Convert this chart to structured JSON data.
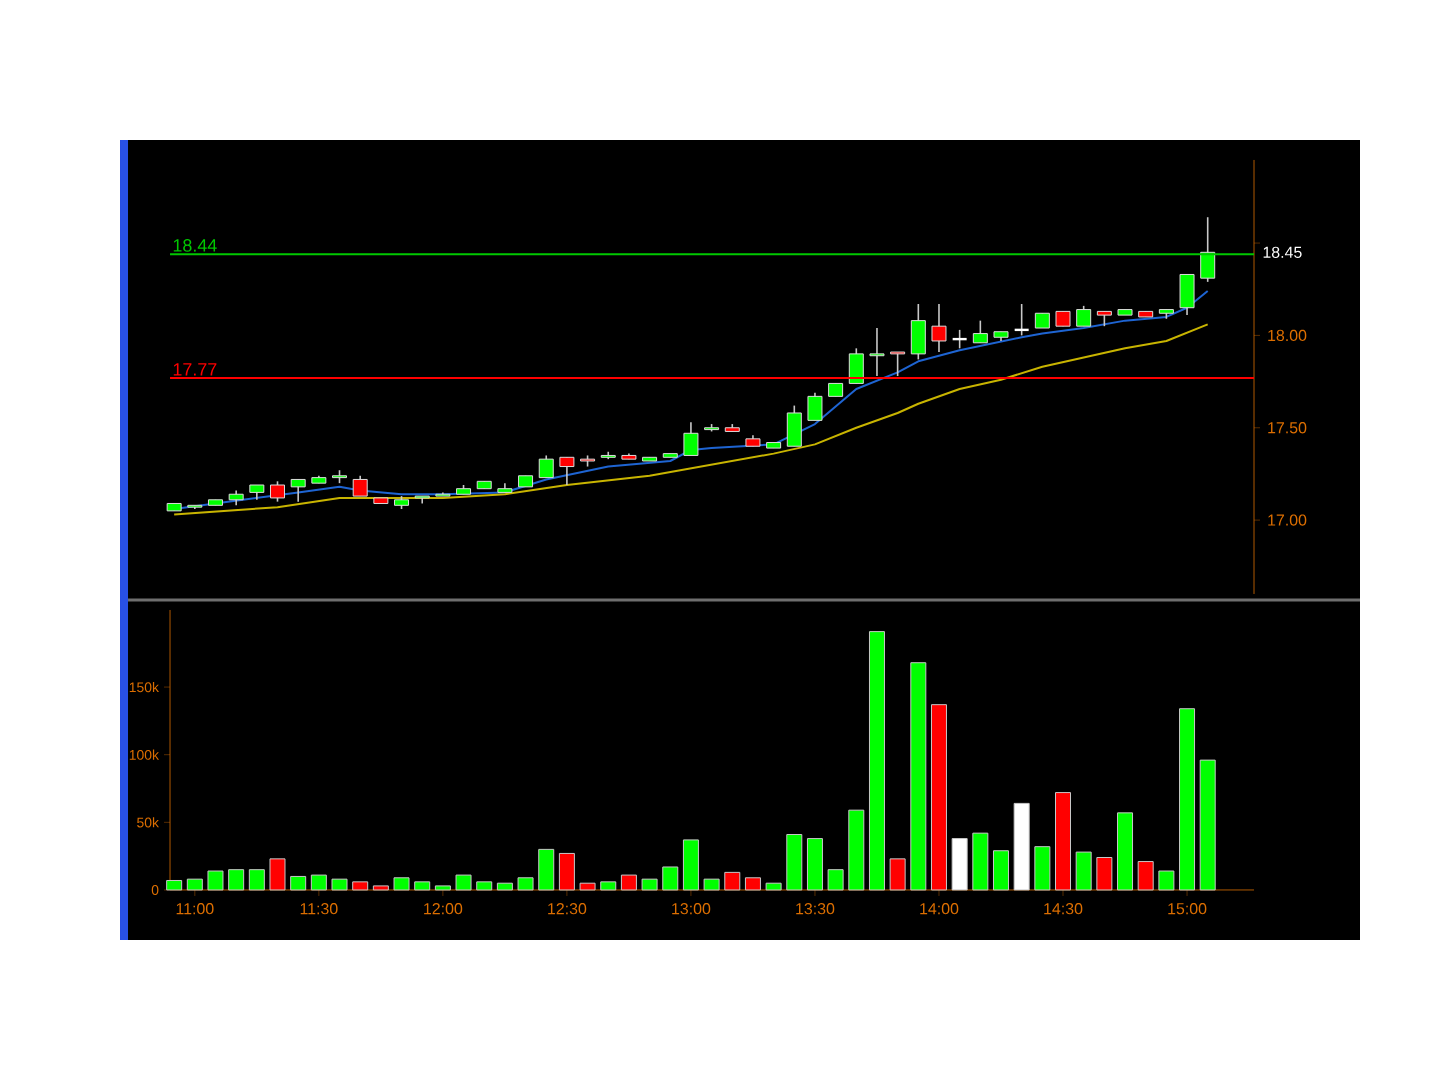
{
  "chart_data": [
    {
      "type": "candlestick",
      "x": [
        10.9167,
        11,
        11.0833,
        11.1667,
        11.25,
        11.3333,
        11.4167,
        11.5,
        11.5833,
        11.6667,
        11.75,
        11.8333,
        11.9167,
        12,
        12.0833,
        12.1667,
        12.25,
        12.3333,
        12.4167,
        12.5,
        12.5833,
        12.6667,
        12.75,
        12.8333,
        12.9167,
        13,
        13.0833,
        13.1667,
        13.25,
        13.3333,
        13.4167,
        13.5,
        13.5833,
        13.6667,
        13.75,
        13.8333,
        13.9167,
        14,
        14.0833,
        14.1667,
        14.25,
        14.3333,
        14.4167,
        14.5,
        14.5833,
        14.6667,
        14.75,
        14.8333,
        14.9167,
        15,
        15.0833
      ],
      "ohlc": [
        [
          17.05,
          17.09,
          17.05,
          17.09
        ],
        [
          17.07,
          17.08,
          17.06,
          17.08
        ],
        [
          17.08,
          17.11,
          17.08,
          17.11
        ],
        [
          17.11,
          17.16,
          17.08,
          17.14
        ],
        [
          17.15,
          17.19,
          17.11,
          17.19
        ],
        [
          17.19,
          17.21,
          17.1,
          17.12
        ],
        [
          17.18,
          17.22,
          17.1,
          17.22
        ],
        [
          17.2,
          17.24,
          17.2,
          17.23
        ],
        [
          17.23,
          17.27,
          17.2,
          17.24
        ],
        [
          17.22,
          17.24,
          17.13,
          17.13
        ],
        [
          17.12,
          17.12,
          17.09,
          17.09
        ],
        [
          17.08,
          17.13,
          17.06,
          17.11
        ],
        [
          17.12,
          17.13,
          17.09,
          17.13
        ],
        [
          17.13,
          17.15,
          17.13,
          17.14
        ],
        [
          17.14,
          17.19,
          17.14,
          17.17
        ],
        [
          17.17,
          17.21,
          17.17,
          17.21
        ],
        [
          17.15,
          17.2,
          17.15,
          17.17
        ],
        [
          17.18,
          17.24,
          17.18,
          17.24
        ],
        [
          17.23,
          17.35,
          17.23,
          17.33
        ],
        [
          17.34,
          17.34,
          17.19,
          17.29
        ],
        [
          17.33,
          17.35,
          17.29,
          17.32
        ],
        [
          17.34,
          17.37,
          17.33,
          17.35
        ],
        [
          17.35,
          17.36,
          17.33,
          17.33
        ],
        [
          17.32,
          17.34,
          17.32,
          17.34
        ],
        [
          17.34,
          17.36,
          17.34,
          17.36
        ],
        [
          17.35,
          17.53,
          17.35,
          17.47
        ],
        [
          17.49,
          17.52,
          17.48,
          17.5
        ],
        [
          17.5,
          17.52,
          17.48,
          17.48
        ],
        [
          17.44,
          17.46,
          17.4,
          17.4
        ],
        [
          17.39,
          17.42,
          17.39,
          17.42
        ],
        [
          17.4,
          17.62,
          17.4,
          17.58
        ],
        [
          17.54,
          17.69,
          17.54,
          17.67
        ],
        [
          17.67,
          17.74,
          17.67,
          17.74
        ],
        [
          17.74,
          17.93,
          17.74,
          17.9
        ],
        [
          17.89,
          18.04,
          17.78,
          17.9
        ],
        [
          17.91,
          17.91,
          17.78,
          17.9
        ],
        [
          17.9,
          18.17,
          17.87,
          18.08
        ],
        [
          18.05,
          18.17,
          17.91,
          17.97
        ],
        [
          17.98,
          18.03,
          17.93,
          17.98
        ],
        [
          17.96,
          18.08,
          17.96,
          18.01
        ],
        [
          17.99,
          18.02,
          17.97,
          18.02
        ],
        [
          18.03,
          18.17,
          18.0,
          18.03
        ],
        [
          18.04,
          18.12,
          18.04,
          18.12
        ],
        [
          18.13,
          18.13,
          18.05,
          18.05
        ],
        [
          18.05,
          18.16,
          18.05,
          18.14
        ],
        [
          18.13,
          18.13,
          18.05,
          18.11
        ],
        [
          18.11,
          18.14,
          18.11,
          18.14
        ],
        [
          18.13,
          18.13,
          18.1,
          18.1
        ],
        [
          18.12,
          18.14,
          18.09,
          18.14
        ],
        [
          18.15,
          18.33,
          18.11,
          18.33
        ],
        [
          18.31,
          18.64,
          18.29,
          18.45
        ]
      ],
      "colors": [
        "#00ff00",
        "#00ff00",
        "#00ff00",
        "#00ff00",
        "#00ff00",
        "#ff0000",
        "#00ff00",
        "#00ff00",
        "#00ff00",
        "#ff0000",
        "#ff0000",
        "#00ff00",
        "#00ff00",
        "#00ff00",
        "#00ff00",
        "#00ff00",
        "#00ff00",
        "#00ff00",
        "#00ff00",
        "#ff0000",
        "#ff0000",
        "#00ff00",
        "#ff0000",
        "#00ff00",
        "#00ff00",
        "#00ff00",
        "#00ff00",
        "#ff0000",
        "#ff0000",
        "#00ff00",
        "#00ff00",
        "#00ff00",
        "#00ff00",
        "#00ff00",
        "#00ff00",
        "#ff0000",
        "#00ff00",
        "#ff0000",
        "#ffffff",
        "#00ff00",
        "#00ff00",
        "#ffffff",
        "#00ff00",
        "#ff0000",
        "#00ff00",
        "#ff0000",
        "#00ff00",
        "#ff0000",
        "#00ff00",
        "#00ff00",
        "#00ff00"
      ],
      "series": [
        {
          "type": "line",
          "color": "#1e64d2",
          "x": [
            10.9167,
            11.4167,
            11.5833,
            11.6667,
            11.8333,
            12,
            12.25,
            12.4167,
            12.6667,
            12.9167,
            13,
            13.0833,
            13.3333,
            13.5,
            13.6667,
            13.8333,
            13.9167,
            14.0833,
            14.3333,
            14.4167,
            14.5833,
            14.75,
            14.9167,
            15,
            15.0833
          ],
          "values": [
            17.06,
            17.15,
            17.18,
            17.16,
            17.14,
            17.14,
            17.15,
            17.22,
            17.29,
            17.32,
            17.38,
            17.39,
            17.41,
            17.52,
            17.71,
            17.8,
            17.86,
            17.92,
            17.99,
            18.01,
            18.04,
            18.08,
            18.1,
            18.15,
            18.24
          ]
        },
        {
          "type": "line",
          "color": "#c8b400",
          "x": [
            10.9167,
            11.3333,
            11.5833,
            12,
            12.25,
            12.5,
            12.8333,
            13.0833,
            13.3333,
            13.5,
            13.6667,
            13.8333,
            13.9167,
            14.0833,
            14.25,
            14.4167,
            14.5833,
            14.75,
            14.9167,
            15.0833
          ],
          "values": [
            17.03,
            17.07,
            17.12,
            17.12,
            17.14,
            17.19,
            17.24,
            17.3,
            17.36,
            17.41,
            17.5,
            17.58,
            17.63,
            17.71,
            17.76,
            17.83,
            17.88,
            17.93,
            17.97,
            18.06
          ]
        }
      ],
      "ref_lines": [
        {
          "axis": "y",
          "value": 18.44,
          "label": "18.44",
          "color": "#00c800"
        },
        {
          "axis": "y",
          "value": 17.77,
          "label": "17.77",
          "color": "#ff0000"
        }
      ],
      "annotations": [
        "18.45"
      ],
      "xlim": [
        10.9,
        15.27
      ],
      "ylim": [
        16.6,
        18.95
      ],
      "yticks": [
        {
          "value": 17,
          "label": "17.00"
        },
        {
          "value": 17.5,
          "label": "17.50"
        },
        {
          "value": 18,
          "label": "18.00"
        },
        {
          "value": 18.5,
          "label": null
        }
      ],
      "tick_labels": "y"
    },
    {
      "type": "bar",
      "x": [
        10.9167,
        11,
        11.0833,
        11.1667,
        11.25,
        11.3333,
        11.4167,
        11.5,
        11.5833,
        11.6667,
        11.75,
        11.8333,
        11.9167,
        12,
        12.0833,
        12.1667,
        12.25,
        12.3333,
        12.4167,
        12.5,
        12.5833,
        12.6667,
        12.75,
        12.8333,
        12.9167,
        13,
        13.0833,
        13.1667,
        13.25,
        13.3333,
        13.4167,
        13.5,
        13.5833,
        13.6667,
        13.75,
        13.8333,
        13.9167,
        14,
        14.0833,
        14.1667,
        14.25,
        14.3333,
        14.4167,
        14.5,
        14.5833,
        14.6667,
        14.75,
        14.8333,
        14.9167,
        15,
        15.0833
      ],
      "values": [
        7000,
        8000,
        14000,
        15000,
        15000,
        23000,
        10000,
        11000,
        8000,
        6000,
        3000,
        9000,
        6000,
        3000,
        11000,
        6000,
        5000,
        9000,
        30000,
        27000,
        5000,
        6000,
        11000,
        8000,
        17000,
        37000,
        8000,
        13000,
        9000,
        5000,
        41000,
        38000,
        15000,
        59000,
        191000,
        23000,
        168000,
        137000,
        38000,
        42000,
        29000,
        64000,
        32000,
        72000,
        28000,
        24000,
        57000,
        21000,
        14000,
        134000,
        96000
      ],
      "colors": [
        "#00ff00",
        "#00ff00",
        "#00ff00",
        "#00ff00",
        "#00ff00",
        "#ff0000",
        "#00ff00",
        "#00ff00",
        "#00ff00",
        "#ff0000",
        "#ff0000",
        "#00ff00",
        "#00ff00",
        "#00ff00",
        "#00ff00",
        "#00ff00",
        "#00ff00",
        "#00ff00",
        "#00ff00",
        "#ff0000",
        "#ff0000",
        "#00ff00",
        "#ff0000",
        "#00ff00",
        "#00ff00",
        "#00ff00",
        "#00ff00",
        "#ff0000",
        "#ff0000",
        "#00ff00",
        "#00ff00",
        "#00ff00",
        "#00ff00",
        "#00ff00",
        "#00ff00",
        "#ff0000",
        "#00ff00",
        "#ff0000",
        "#ffffff",
        "#00ff00",
        "#00ff00",
        "#ffffff",
        "#00ff00",
        "#ff0000",
        "#00ff00",
        "#ff0000",
        "#00ff00",
        "#ff0000",
        "#00ff00",
        "#00ff00",
        "#00ff00"
      ],
      "xlim": [
        10.9,
        15.27
      ],
      "ylim": [
        0,
        207000
      ],
      "xticks": [
        {
          "value": 11,
          "label": "11:00"
        },
        {
          "value": 11.5,
          "label": "11:30"
        },
        {
          "value": 12,
          "label": "12:00"
        },
        {
          "value": 12.5,
          "label": "12:30"
        },
        {
          "value": 13,
          "label": "13:00"
        },
        {
          "value": 13.5,
          "label": "13:30"
        },
        {
          "value": 14,
          "label": "14:00"
        },
        {
          "value": 14.5,
          "label": "14:30"
        },
        {
          "value": 15,
          "label": "15:00"
        }
      ],
      "yticks": [
        0,
        {
          "value": 50000,
          "label": "50k"
        },
        {
          "value": 100000,
          "label": "100k"
        },
        {
          "value": 150000,
          "label": "150k"
        }
      ]
    }
  ]
}
